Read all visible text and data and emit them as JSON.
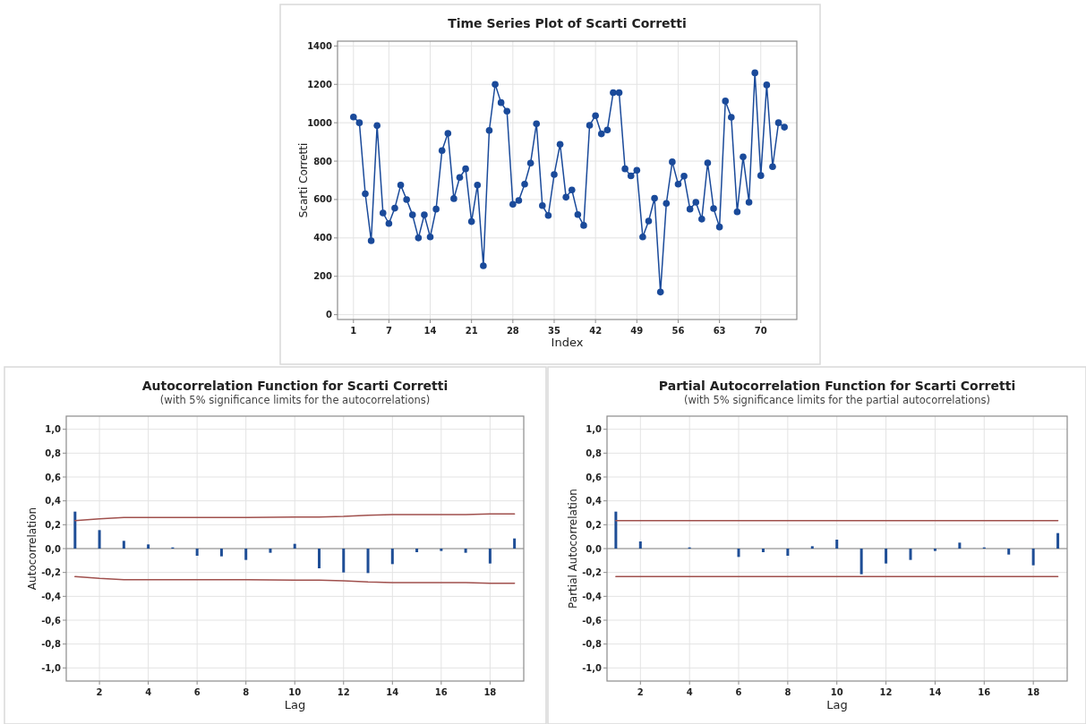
{
  "chart_data": [
    {
      "type": "line",
      "title": "Time Series Plot of Scarti Corretti",
      "xlabel": "Index",
      "ylabel": "Scarti Corretti",
      "marker": "circle",
      "grid": true,
      "x": [
        1,
        2,
        3,
        4,
        5,
        6,
        7,
        8,
        9,
        10,
        11,
        12,
        13,
        14,
        15,
        16,
        17,
        18,
        19,
        20,
        21,
        22,
        23,
        24,
        25,
        26,
        27,
        28,
        29,
        30,
        31,
        32,
        33,
        34,
        35,
        36,
        37,
        38,
        39,
        40,
        41,
        42,
        43,
        44,
        45,
        46,
        47,
        48,
        49,
        50,
        51,
        52,
        53,
        54,
        55,
        56,
        57,
        58,
        59,
        60,
        61,
        62,
        63,
        64,
        65,
        66,
        67,
        68,
        69,
        70,
        71,
        72,
        73,
        74
      ],
      "series": [
        {
          "color": "#1a4a9a",
          "values": [
            1030,
            1000,
            630,
            385,
            985,
            530,
            475,
            555,
            675,
            600,
            520,
            400,
            520,
            405,
            550,
            855,
            945,
            605,
            715,
            760,
            485,
            675,
            255,
            960,
            1200,
            1105,
            1060,
            575,
            595,
            680,
            790,
            995,
            568,
            517,
            730,
            888,
            612,
            650,
            522,
            465,
            987,
            1037,
            942,
            962,
            1157,
            1157,
            760,
            723,
            752,
            405,
            488,
            607,
            118,
            580,
            796,
            680,
            722,
            550,
            586,
            498,
            791,
            553,
            457,
            1113,
            1029,
            536,
            822,
            586,
            1260,
            725,
            1197,
            771,
            1000,
            977
          ]
        }
      ],
      "xlim": [
        -1.7,
        76.1
      ],
      "ylim": [
        -25,
        1425
      ],
      "xticks": [
        1,
        7,
        14,
        21,
        28,
        35,
        42,
        49,
        56,
        63,
        70
      ],
      "yticks": [
        0,
        200,
        400,
        600,
        800,
        1000,
        1200,
        1400
      ]
    },
    {
      "type": "bar",
      "title": "Autocorrelation Function for Scarti Corretti",
      "subtitle": "(with 5% significance limits for the autocorrelations)",
      "xlabel": "Lag",
      "ylabel": "Autocorrelation",
      "grid": true,
      "x": [
        1,
        2,
        3,
        4,
        5,
        6,
        7,
        8,
        9,
        10,
        11,
        12,
        13,
        14,
        15,
        16,
        17,
        18,
        19
      ],
      "series": [
        {
          "color": "#1f4e96",
          "values": [
            0.31,
            0.155,
            0.065,
            0.035,
            0.01,
            -0.06,
            -0.065,
            -0.095,
            -0.035,
            0.04,
            -0.165,
            -0.2,
            -0.205,
            -0.13,
            -0.03,
            -0.02,
            -0.035,
            -0.125,
            0.085
          ]
        },
        {
          "type": "line",
          "color": "#a0504d",
          "values": [
            0.235,
            0.25,
            0.26,
            0.26,
            0.26,
            0.26,
            0.26,
            0.26,
            0.262,
            0.265,
            0.265,
            0.27,
            0.28,
            0.285,
            0.285,
            0.285,
            0.285,
            0.29,
            0.29
          ]
        },
        {
          "type": "line",
          "color": "#a0504d",
          "values": [
            -0.235,
            -0.25,
            -0.26,
            -0.26,
            -0.26,
            -0.26,
            -0.26,
            -0.26,
            -0.262,
            -0.265,
            -0.265,
            -0.27,
            -0.28,
            -0.285,
            -0.285,
            -0.285,
            -0.285,
            -0.29,
            -0.29
          ]
        }
      ],
      "xlim": [
        0.64,
        19.38
      ],
      "ylim": [
        -1.11,
        1.11
      ],
      "xticks": [
        2,
        4,
        6,
        8,
        10,
        12,
        14,
        16,
        18
      ],
      "yticks": [
        {
          "value": 1,
          "label": "1,0"
        },
        {
          "value": 0.8,
          "label": "0,8"
        },
        {
          "value": 0.6,
          "label": "0,6"
        },
        {
          "value": 0.4,
          "label": "0,4"
        },
        {
          "value": 0.2,
          "label": "0,2"
        },
        {
          "value": 0,
          "label": "0,0"
        },
        {
          "value": -0.2,
          "label": "-0,2"
        },
        {
          "value": -0.4,
          "label": "-0,4"
        },
        {
          "value": -0.6,
          "label": "-0,6"
        },
        {
          "value": -0.8,
          "label": "-0,8"
        },
        {
          "value": -1,
          "label": "-1,0"
        }
      ]
    },
    {
      "type": "bar",
      "title": "Partial Autocorrelation Function for Scarti Corretti",
      "subtitle": "(with 5% significance limits for the partial autocorrelations)",
      "xlabel": "Lag",
      "ylabel": "Partial Autocorrelation",
      "grid": true,
      "x": [
        1,
        2,
        3,
        4,
        5,
        6,
        7,
        8,
        9,
        10,
        11,
        12,
        13,
        14,
        15,
        16,
        17,
        18,
        19
      ],
      "series": [
        {
          "color": "#1f4e96",
          "values": [
            0.31,
            0.06,
            0.0,
            0.01,
            0.0,
            -0.07,
            -0.03,
            -0.06,
            0.02,
            0.075,
            -0.215,
            -0.125,
            -0.095,
            -0.02,
            0.05,
            0.01,
            -0.05,
            -0.14,
            0.13
          ]
        },
        {
          "type": "line",
          "color": "#a0504d",
          "values": [
            0.235,
            0.235,
            0.235,
            0.235,
            0.235,
            0.235,
            0.235,
            0.235,
            0.235,
            0.235,
            0.235,
            0.235,
            0.235,
            0.235,
            0.235,
            0.235,
            0.235,
            0.235,
            0.235
          ]
        },
        {
          "type": "line",
          "color": "#a0504d",
          "values": [
            -0.235,
            -0.235,
            -0.235,
            -0.235,
            -0.235,
            -0.235,
            -0.235,
            -0.235,
            -0.235,
            -0.235,
            -0.235,
            -0.235,
            -0.235,
            -0.235,
            -0.235,
            -0.235,
            -0.235,
            -0.235,
            -0.235
          ]
        }
      ],
      "xlim": [
        0.64,
        19.38
      ],
      "ylim": [
        -1.11,
        1.11
      ],
      "xticks": [
        2,
        4,
        6,
        8,
        10,
        12,
        14,
        16,
        18
      ],
      "yticks": [
        {
          "value": 1,
          "label": "1,0"
        },
        {
          "value": 0.8,
          "label": "0,8"
        },
        {
          "value": 0.6,
          "label": "0,6"
        },
        {
          "value": 0.4,
          "label": "0,4"
        },
        {
          "value": 0.2,
          "label": "0,2"
        },
        {
          "value": 0,
          "label": "0,0"
        },
        {
          "value": -0.2,
          "label": "-0,2"
        },
        {
          "value": -0.4,
          "label": "-0,4"
        },
        {
          "value": -0.6,
          "label": "-0,6"
        },
        {
          "value": -0.8,
          "label": "-0,8"
        },
        {
          "value": -1,
          "label": "-1,0"
        }
      ]
    }
  ]
}
